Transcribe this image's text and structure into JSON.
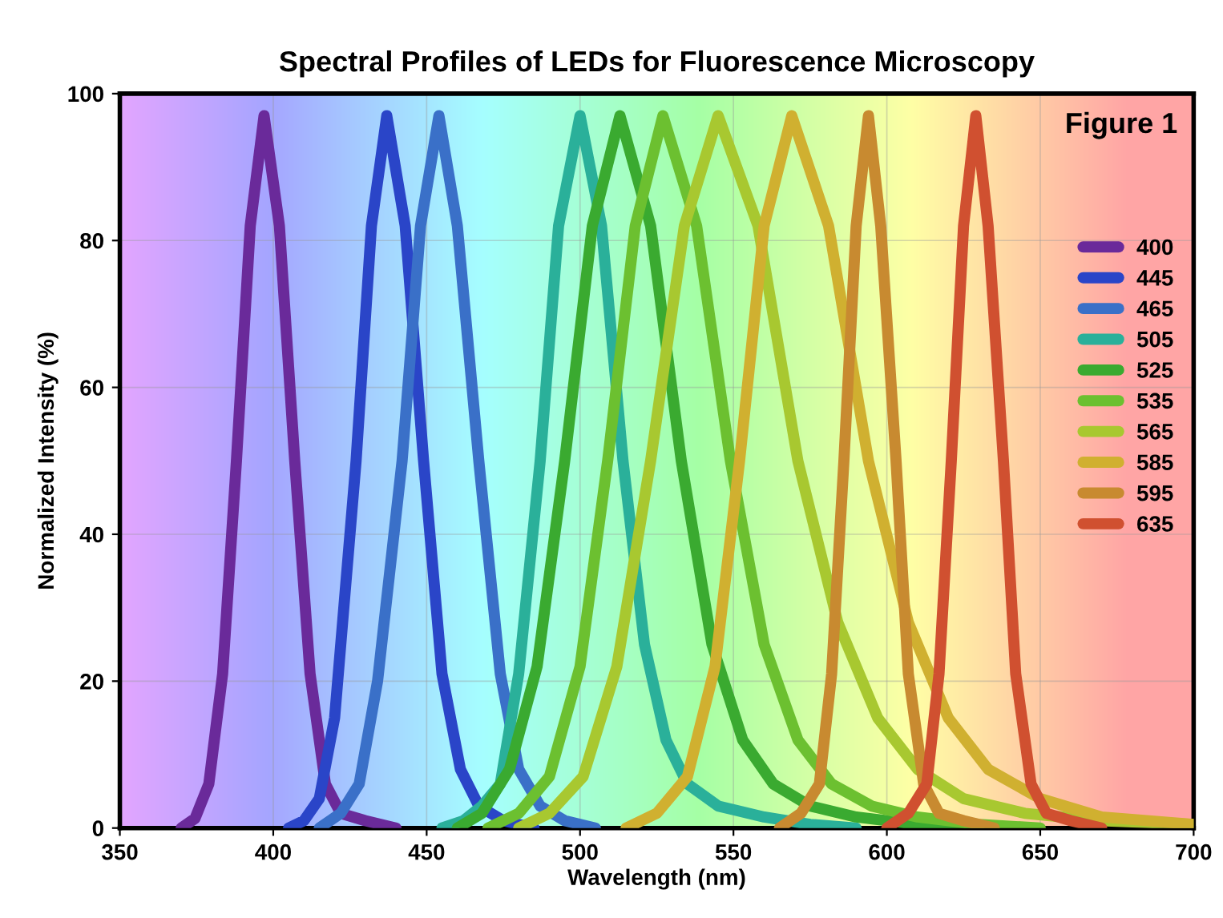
{
  "chart_data": {
    "type": "line",
    "title": "Spectral Profiles of LEDs for Fluorescence Microscopy",
    "xlabel": "Wavelength (nm)",
    "ylabel": "Normalized Intensity (%)",
    "annotations": [
      "Figure 1"
    ],
    "xlim": [
      350,
      700
    ],
    "xticks": [
      350,
      400,
      450,
      500,
      550,
      600,
      650,
      700
    ],
    "ylim": [
      0,
      100
    ],
    "yticks": [
      0,
      20,
      40,
      60,
      80,
      100
    ],
    "grid": true,
    "legend": "right",
    "marker": "none",
    "line_style": "solid",
    "series": [
      {
        "name": "400",
        "color": "#6a2a9a",
        "x": [
          370,
          374.5,
          379,
          383.5,
          388,
          392.5,
          397,
          402,
          407,
          412,
          417,
          422,
          430,
          440
        ],
        "values": [
          0,
          1.3,
          6,
          21,
          50,
          82,
          97,
          82,
          50,
          21,
          6,
          2,
          1,
          0
        ]
      },
      {
        "name": "445",
        "color": "#2a45c8",
        "x": [
          405,
          410,
          415,
          420,
          427,
          432,
          437,
          443,
          449,
          455,
          461,
          467,
          475,
          485
        ],
        "values": [
          0,
          1,
          4,
          15,
          50,
          82,
          97,
          82,
          50,
          21,
          8,
          3,
          1,
          0
        ]
      },
      {
        "name": "465",
        "color": "#3a70c8",
        "x": [
          415,
          422,
          428,
          434,
          442,
          448,
          454,
          460,
          467,
          474,
          480,
          487,
          495,
          505
        ],
        "values": [
          0,
          2,
          6,
          20,
          50,
          82,
          97,
          82,
          50,
          21,
          8,
          3,
          1,
          0
        ]
      },
      {
        "name": "505",
        "color": "#2ab09a",
        "x": [
          455,
          462,
          468,
          474,
          480,
          487,
          493,
          500,
          507,
          514,
          521,
          528,
          535,
          545,
          560,
          575,
          590
        ],
        "values": [
          0,
          1,
          3,
          6,
          21,
          50,
          82,
          97,
          82,
          50,
          25,
          12,
          6,
          3,
          1.5,
          0.5,
          0
        ]
      },
      {
        "name": "525",
        "color": "#3aaa30",
        "x": [
          460,
          468,
          477,
          486,
          495,
          504,
          513,
          523,
          533,
          543,
          553,
          563,
          575,
          590,
          610,
          630
        ],
        "values": [
          0,
          2,
          8,
          22,
          50,
          82,
          97,
          82,
          50,
          25,
          12,
          6,
          3,
          1.5,
          0.5,
          0
        ]
      },
      {
        "name": "535",
        "color": "#6cc030",
        "x": [
          470,
          480,
          490,
          500,
          509,
          518,
          527,
          538,
          549,
          560,
          571,
          582,
          595,
          610,
          630,
          650
        ],
        "values": [
          0,
          2,
          7,
          22,
          50,
          82,
          97,
          82,
          50,
          25,
          12,
          6,
          3,
          1.5,
          0.5,
          0
        ]
      },
      {
        "name": "565",
        "color": "#a8c830",
        "x": [
          480,
          490,
          501,
          512,
          523,
          534,
          545,
          558,
          571,
          584,
          597,
          610,
          625,
          645,
          670,
          700
        ],
        "values": [
          0,
          2,
          7,
          22,
          50,
          82,
          97,
          82,
          50,
          28,
          15,
          8,
          4,
          2,
          1,
          0.5
        ]
      },
      {
        "name": "585",
        "color": "#d0b030",
        "x": [
          515,
          525,
          535,
          544,
          552,
          560,
          569,
          581,
          594,
          607,
          620,
          633,
          650,
          670,
          700
        ],
        "values": [
          0,
          2,
          7,
          22,
          50,
          82,
          97,
          82,
          50,
          28,
          15,
          8,
          4,
          1.5,
          0.5
        ]
      },
      {
        "name": "595",
        "color": "#c88a30",
        "x": [
          565,
          572,
          578,
          582,
          586,
          590,
          594,
          598,
          603,
          607,
          612,
          617,
          625,
          635
        ],
        "values": [
          0,
          2,
          6,
          21,
          50,
          82,
          97,
          82,
          50,
          21,
          6,
          2,
          1,
          0
        ]
      },
      {
        "name": "635",
        "color": "#d05030",
        "x": [
          600,
          607,
          613,
          617,
          621,
          625,
          629,
          633,
          638,
          642,
          647,
          652,
          660,
          670
        ],
        "values": [
          0,
          2,
          6,
          21,
          50,
          82,
          97,
          82,
          50,
          21,
          6,
          2,
          1,
          0
        ]
      }
    ]
  }
}
